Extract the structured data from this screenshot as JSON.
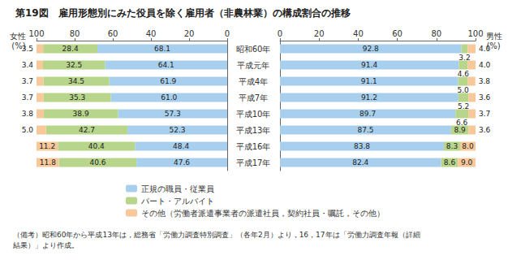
{
  "chart_data": {
    "type": "bar",
    "title": "第19図　雇用形態別にみた役員を除く雇用者（非農林業）の構成割合の推移",
    "orientation": "horizontal",
    "stacked": true,
    "data_labels": true,
    "grid": false,
    "categories": [
      "昭和60年",
      "平成元年",
      "平成4年",
      "平成7年",
      "平成10年",
      "平成13年",
      "平成16年",
      "平成17年"
    ],
    "panels": [
      {
        "name": "女性",
        "unit": "(%)",
        "xlim": [
          0,
          100
        ],
        "xticks": [
          0,
          20,
          40,
          60,
          80,
          100
        ],
        "series": [
          {
            "name": "正規の職員・従業員",
            "color": "#a8d0ee",
            "values": [
              68.1,
              64.1,
              61.9,
              61.0,
              57.3,
              52.3,
              48.4,
              47.6
            ],
            "value_labels": [
              "68.1",
              "64.1",
              "61.9",
              "61.0",
              "57.3",
              "52.3",
              "48.4",
              "47.6"
            ]
          },
          {
            "name": "パート・アルバイト",
            "color": "#b7d58b",
            "values": [
              28.4,
              32.5,
              34.5,
              35.3,
              38.9,
              42.7,
              40.4,
              40.6
            ]
          },
          {
            "name": "その他（労働者派遣事業者の派遣社員，契約社員・嘱託，その他）",
            "color": "#f7c99a",
            "values": [
              3.5,
              3.4,
              3.7,
              3.7,
              3.8,
              5.0,
              11.2,
              11.8
            ],
            "value_labels": [
              "3.5",
              "3.4",
              "3.7",
              "3.7",
              "3.8",
              "5.0",
              "11.2",
              "11.8"
            ]
          }
        ]
      },
      {
        "name": "男性",
        "unit": "(%)",
        "xlim": [
          0,
          100
        ],
        "xticks": [
          0,
          20,
          40,
          60,
          80,
          100
        ],
        "series": [
          {
            "name": "正規の職員・従業員",
            "color": "#a8d0ee",
            "values": [
              92.8,
              91.4,
              91.1,
              91.2,
              89.7,
              87.5,
              83.8,
              82.4
            ]
          },
          {
            "name": "パート・アルバイト",
            "color": "#b7d58b",
            "values": [
              3.2,
              4.6,
              5.0,
              5.2,
              6.6,
              8.9,
              8.3,
              8.6
            ],
            "value_labels": [
              "3.2",
              "4.6",
              "5.0",
              "5.2",
              "6.6",
              "8.9",
              "8.3",
              "8.6"
            ]
          },
          {
            "name": "その他（労働者派遣事業者の派遣社員，契約社員・嘱託，その他）",
            "color": "#f7c99a",
            "values": [
              4.0,
              4.0,
              3.8,
              3.6,
              3.7,
              3.6,
              8.0,
              9.0
            ],
            "value_labels": [
              "4.0",
              "4.0",
              "3.8",
              "3.6",
              "3.7",
              "3.6",
              "8.0",
              "9.0"
            ]
          }
        ]
      }
    ],
    "note": [
      "（備考）昭和60年から平成13年は，総務省「労働力調査特別調査」（各年2月）より，16，17年は「労働力調査年報（詳細",
      "結果）」より作成。"
    ]
  }
}
